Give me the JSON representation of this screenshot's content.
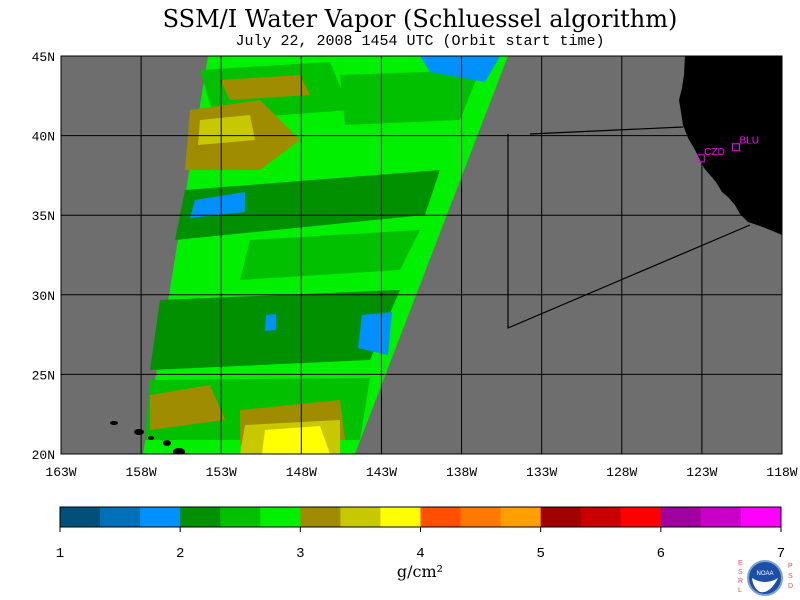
{
  "title": "SSM/I Water Vapor (Schluessel algorithm)",
  "subtitle": "July 22, 2008   1454 UTC  (Orbit start time)",
  "map": {
    "lon_range": [
      -163,
      -118
    ],
    "lat_range": [
      20,
      45
    ],
    "lat_labels": [
      "20N",
      "25N",
      "30N",
      "35N",
      "40N",
      "45N"
    ],
    "lon_labels": [
      "163W",
      "158W",
      "153W",
      "148W",
      "143W",
      "138W",
      "133W",
      "128W",
      "123W",
      "118W"
    ],
    "land_color": "#000000",
    "ocean_color": "#6e6e6e",
    "sites": [
      {
        "name": "CZD",
        "lon": -123.1,
        "lat": 38.6
      },
      {
        "name": "BLU",
        "lon": -120.9,
        "lat": 39.3
      }
    ]
  },
  "colorbar": {
    "ticks": [
      "1",
      "2",
      "3",
      "4",
      "5",
      "6",
      "7"
    ],
    "units": "g/cm²",
    "colors": [
      "#00507a",
      "#0070b8",
      "#0090ff",
      "#009000",
      "#00c000",
      "#00f000",
      "#a08c00",
      "#c8c800",
      "#ffff00",
      "#ff5000",
      "#ff7800",
      "#ffa000",
      "#a00000",
      "#c80000",
      "#ff0000",
      "#a000a0",
      "#c800c8",
      "#ff00ff"
    ]
  },
  "logo": {
    "left_letters": [
      "E",
      "S",
      "R",
      "L"
    ],
    "right_letters": [
      "P",
      "S",
      "D"
    ],
    "badge": "NOAA"
  }
}
